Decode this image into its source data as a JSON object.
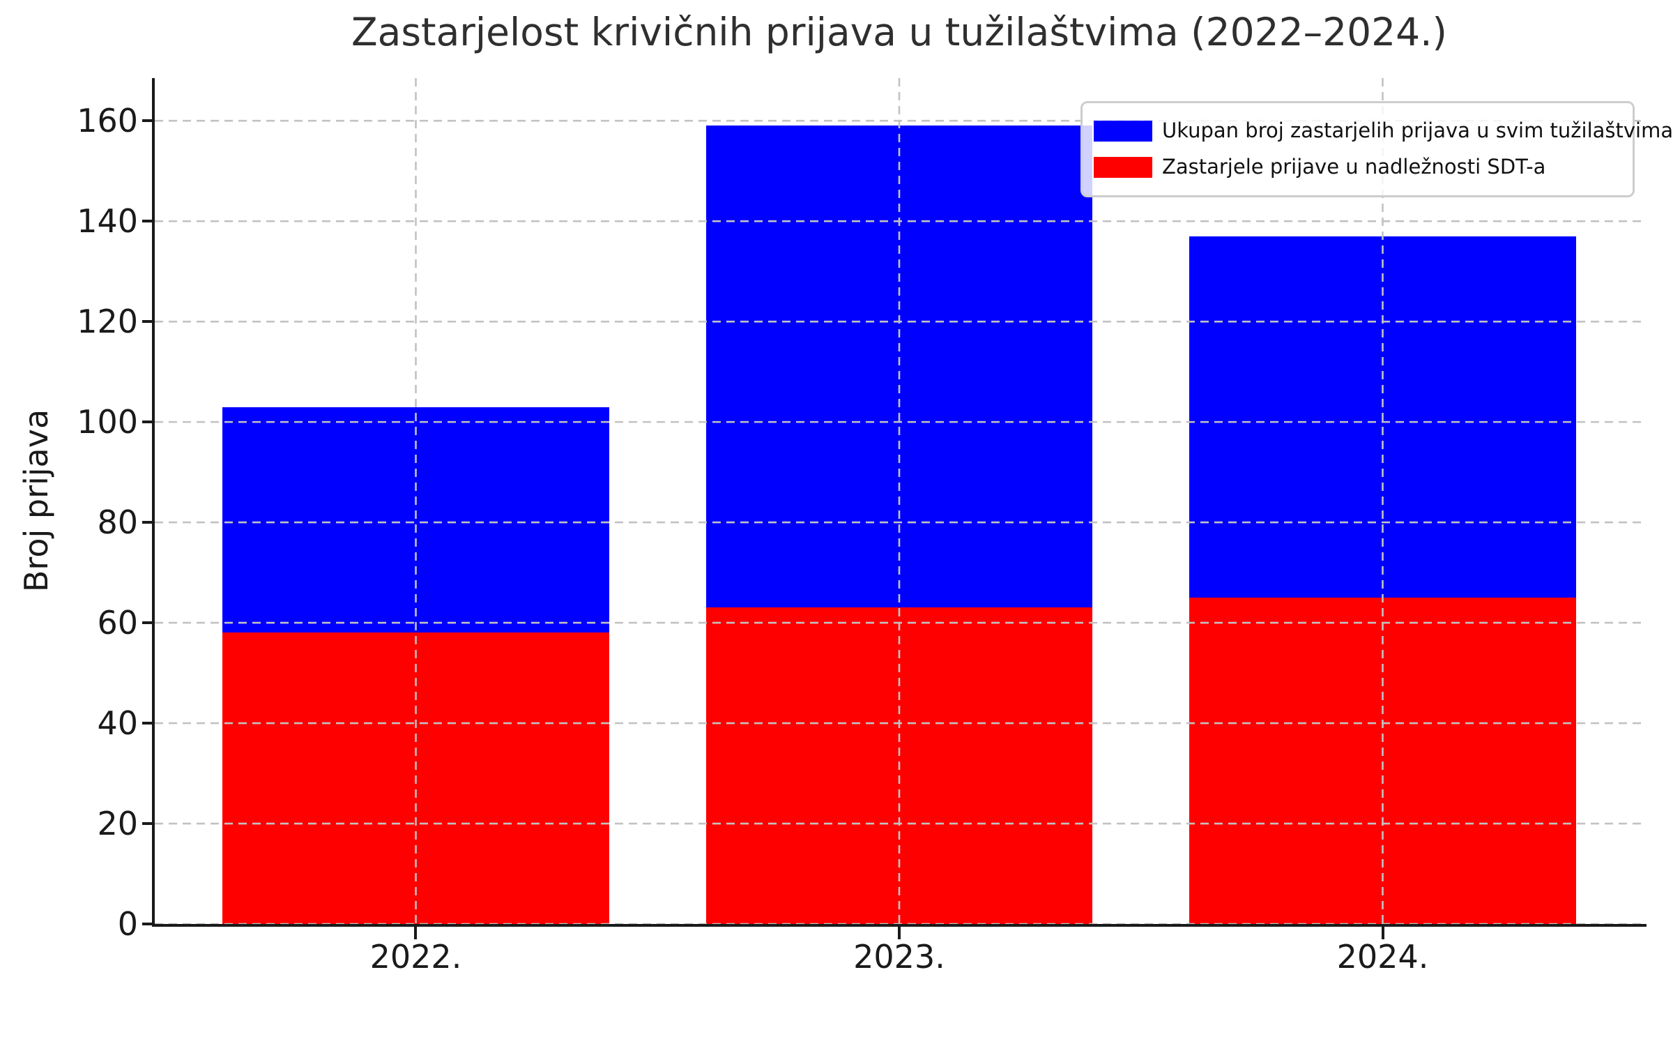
{
  "title": "Zastarjelost krivičnih prijava u tužilaštvima (2022–2024.)",
  "ylabel": "Broj prijava",
  "legend": {
    "position": "upper right",
    "items": [
      {
        "label": "Ukupan broj zastarjelih prijava u svim tužilaštvima",
        "color": "#0000ff"
      },
      {
        "label": "Zastarjele prijave u nadležnosti SDT-a",
        "color": "#ff0000"
      }
    ]
  },
  "colors": {
    "total_bar": "#0000ff",
    "sdt_bar": "#ff0000",
    "grid": "#c2c2c2",
    "axis": "#1a1a1a",
    "title_text": "#2f2f2f",
    "legend_border": "#cdcdcd"
  },
  "chart_data": {
    "type": "bar",
    "style": "overlay (red subset drawn in front of blue total, both bottom-aligned)",
    "title": "Zastarjelost krivičnih prijava u tužilaštvima (2022–2024.)",
    "xlabel": "",
    "ylabel": "Broj prijava",
    "categories": [
      "2022.",
      "2023.",
      "2024."
    ],
    "series": [
      {
        "name": "Ukupan broj zastarjelih prijava u svim tužilaštvima",
        "color": "#0000ff",
        "values": [
          103,
          159,
          137
        ]
      },
      {
        "name": "Zastarjele prijave u nadležnosti SDT-a",
        "color": "#ff0000",
        "values": [
          58,
          63,
          65
        ]
      }
    ],
    "yticks": [
      0,
      20,
      40,
      60,
      80,
      100,
      120,
      140,
      160
    ],
    "ylim": [
      0,
      168.5
    ],
    "xlim_data": [
      -0.54,
      2.54
    ],
    "bar_width_data": 0.8,
    "grid": "dashed gray, horizontal and vertical, drawn above bars",
    "legend_position": "upper right"
  }
}
